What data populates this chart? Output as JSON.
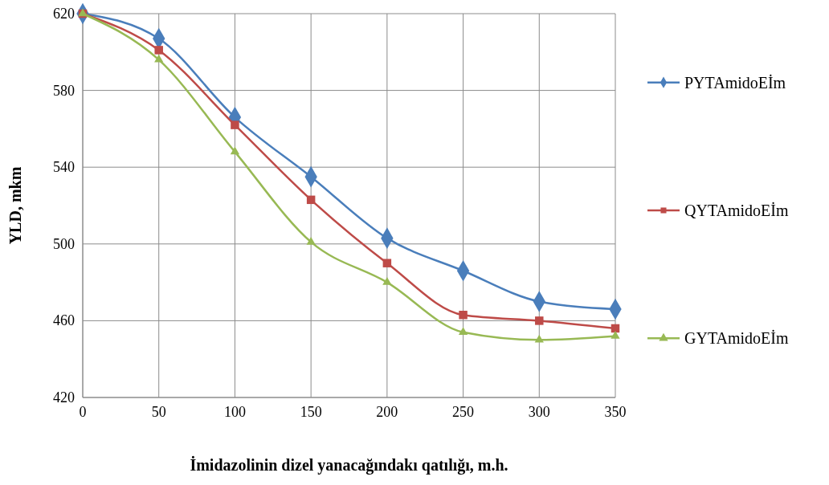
{
  "chart_data": {
    "type": "line",
    "xlabel": "İmidazolinin dizel yanacağındakı qatılığı, m.h.",
    "ylabel": "YLD, mkm",
    "x": [
      0,
      50,
      100,
      150,
      200,
      250,
      300,
      350
    ],
    "xlim": [
      0,
      350
    ],
    "xticks": [
      0,
      50,
      100,
      150,
      200,
      250,
      300,
      350
    ],
    "ylim": [
      420,
      620
    ],
    "yticks": [
      420,
      460,
      500,
      540,
      580,
      620
    ],
    "grid": true,
    "legend": "right",
    "series": [
      {
        "name": "PYTAmidoEİm",
        "color": "#4a7ebb",
        "marker": "diamond",
        "values": [
          620,
          607,
          566,
          535,
          503,
          486,
          470,
          466
        ]
      },
      {
        "name": "QYTAmidoEİm",
        "color": "#be4b48",
        "marker": "square",
        "values": [
          620,
          601,
          562,
          523,
          490,
          463,
          460,
          456
        ]
      },
      {
        "name": "GYTAmidoEİm",
        "color": "#98b954",
        "marker": "triangle",
        "values": [
          620,
          596,
          548,
          501,
          480,
          454,
          450,
          452
        ]
      }
    ]
  }
}
